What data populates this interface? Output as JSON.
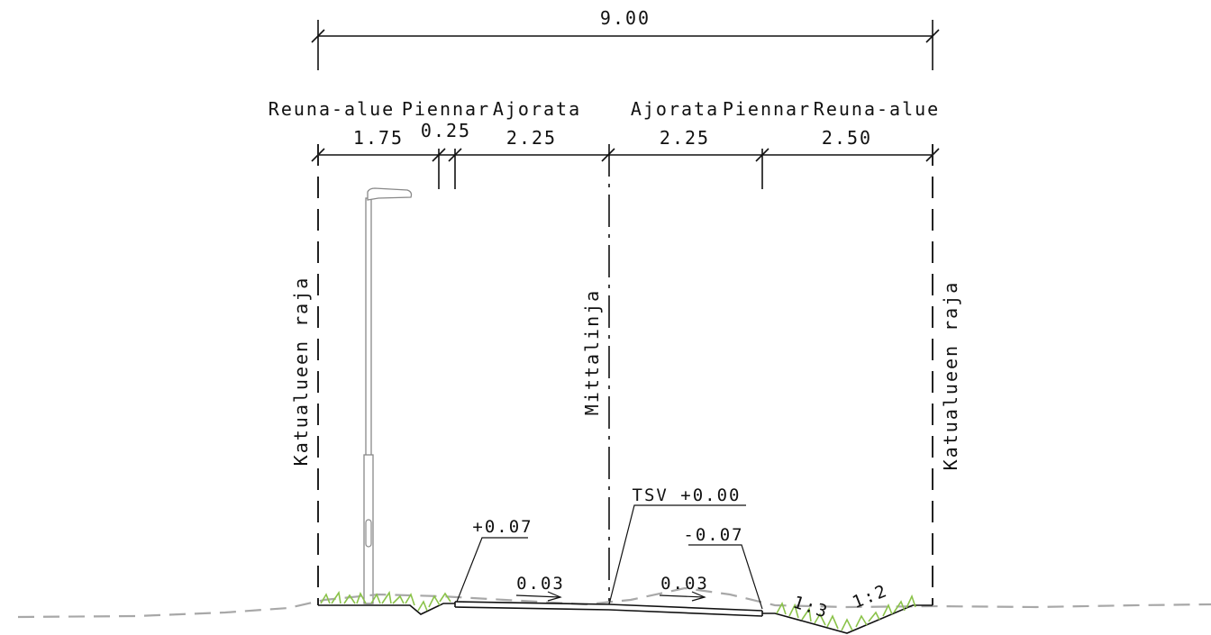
{
  "overall_width": "9.00",
  "zones": [
    {
      "name": "Reuna-alue",
      "width": "1.75"
    },
    {
      "name": "Piennar",
      "width": "0.25"
    },
    {
      "name": "Ajorata",
      "width": "2.25"
    },
    {
      "name": "Ajorata",
      "width": "2.25"
    },
    {
      "name": "Piennar",
      "width": ""
    },
    {
      "name": "Reuna-alue",
      "width": "2.50"
    }
  ],
  "labels": {
    "left_boundary": "Katualueen raja",
    "centerline": "Mittalinja",
    "right_boundary": "Katualueen raja"
  },
  "levels": {
    "left_edge": "+0.07",
    "center": "TSV +0.00",
    "right_edge": "-0.07"
  },
  "slopes": {
    "left": "0.03",
    "right": "0.03"
  },
  "ditch_slopes": {
    "inner": "1:3",
    "outer": "1:2"
  },
  "colors": {
    "line": "#111111",
    "ground": "#a8a8a8",
    "grass": "#8bc34a"
  }
}
